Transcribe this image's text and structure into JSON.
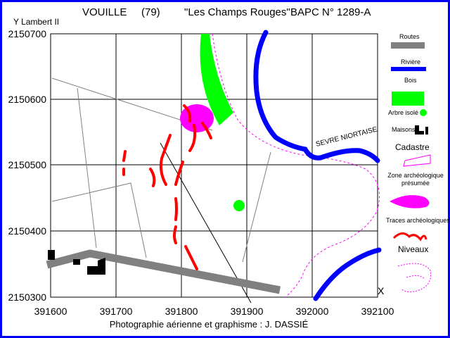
{
  "header": {
    "place": "VOUILLE",
    "dept": "(79)",
    "site_name": "\"Les Champs Rouges\"",
    "bapc": "BAPC N° 1289-A"
  },
  "projection_label": "Y  Lambert II",
  "y_ticks": [
    "2150700",
    "2150600",
    "2150500",
    "2150400",
    "2150300"
  ],
  "x_ticks": [
    "391600",
    "391700",
    "391800",
    "391900",
    "392000",
    "392100"
  ],
  "river_label": "SEVRE NIORTAISE",
  "corner_mark": "X",
  "credit": "Photographie aérienne et graphisme : J. DASSIÉ",
  "legend": {
    "routes": "Routes",
    "riviere": "Rivière",
    "bois": "Bois",
    "arbre": "Arbre isolé",
    "maisons": "Maisons",
    "cadastre": "Cadastre",
    "zone": "Zone archéologique présumée",
    "traces": "Traces archéologiques",
    "niveaux": "Niveaux"
  },
  "colors": {
    "frame": "#0000ff",
    "road": "#808080",
    "river": "#0000ff",
    "wood": "#00ff00",
    "zone": "#ff00ff",
    "traces": "#ff0000",
    "buildings": "#000000",
    "cadastre": "#808080",
    "levels": "#ff00ff"
  }
}
